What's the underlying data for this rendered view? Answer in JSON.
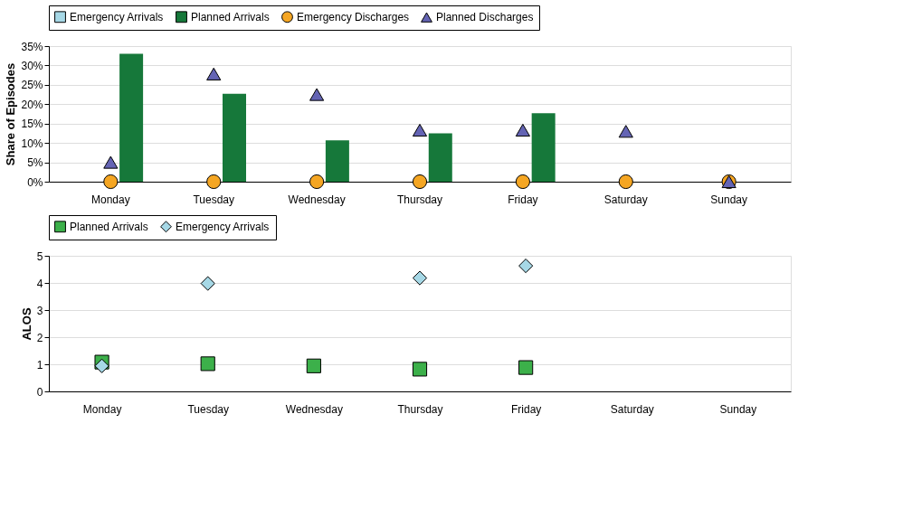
{
  "chart_data": [
    {
      "type": "bar",
      "ylabel": "Share of Episodes",
      "categories": [
        "Monday",
        "Tuesday",
        "Wednesday",
        "Thursday",
        "Friday",
        "Saturday",
        "Sunday"
      ],
      "series": [
        {
          "name": "Emergency Arrivals",
          "type": "bar",
          "color": "#a6d8e6",
          "values": [
            0,
            0,
            null,
            0,
            0,
            null,
            null
          ]
        },
        {
          "name": "Planned Arrivals",
          "type": "bar",
          "color": "#16783a",
          "values": [
            33,
            22.7,
            10.7,
            12.5,
            17.7,
            null,
            null
          ]
        },
        {
          "name": "Emergency Discharges",
          "type": "scatter",
          "marker": "circle",
          "color": "#f5a623",
          "values": [
            0,
            0,
            0,
            0,
            0,
            0,
            0
          ]
        },
        {
          "name": "Planned Discharges",
          "type": "scatter",
          "marker": "triangle",
          "color": "#6464b4",
          "values": [
            5,
            27.8,
            22.5,
            13.3,
            13.3,
            13,
            0
          ]
        }
      ],
      "ylim": [
        0,
        35
      ],
      "yticks": [
        {
          "value": 0,
          "label": "0%"
        },
        {
          "value": 5,
          "label": "5%"
        },
        {
          "value": 10,
          "label": "10%"
        },
        {
          "value": 15,
          "label": "15%"
        },
        {
          "value": 20,
          "label": "20%"
        },
        {
          "value": 25,
          "label": "25%"
        },
        {
          "value": 30,
          "label": "30%"
        },
        {
          "value": 35,
          "label": "35%"
        }
      ],
      "grid": "y",
      "legend": "top"
    },
    {
      "type": "scatter",
      "ylabel": "ALOS",
      "categories": [
        "Monday",
        "Tuesday",
        "Wednesday",
        "Thursday",
        "Friday",
        "Saturday",
        "Sunday"
      ],
      "series": [
        {
          "name": "Planned Arrivals",
          "marker": "square",
          "color": "#3cb04a",
          "values": [
            1.08,
            1.02,
            0.94,
            0.82,
            0.88,
            null,
            null
          ]
        },
        {
          "name": "Emergency Arrivals",
          "marker": "diamond",
          "color": "#a6d8e6",
          "values": [
            0.94,
            3.98,
            null,
            4.18,
            4.63,
            null,
            null
          ]
        }
      ],
      "ylim": [
        0,
        5
      ],
      "yticks": [
        0,
        1,
        2,
        3,
        4,
        5
      ],
      "grid": "y",
      "legend": "top"
    }
  ]
}
